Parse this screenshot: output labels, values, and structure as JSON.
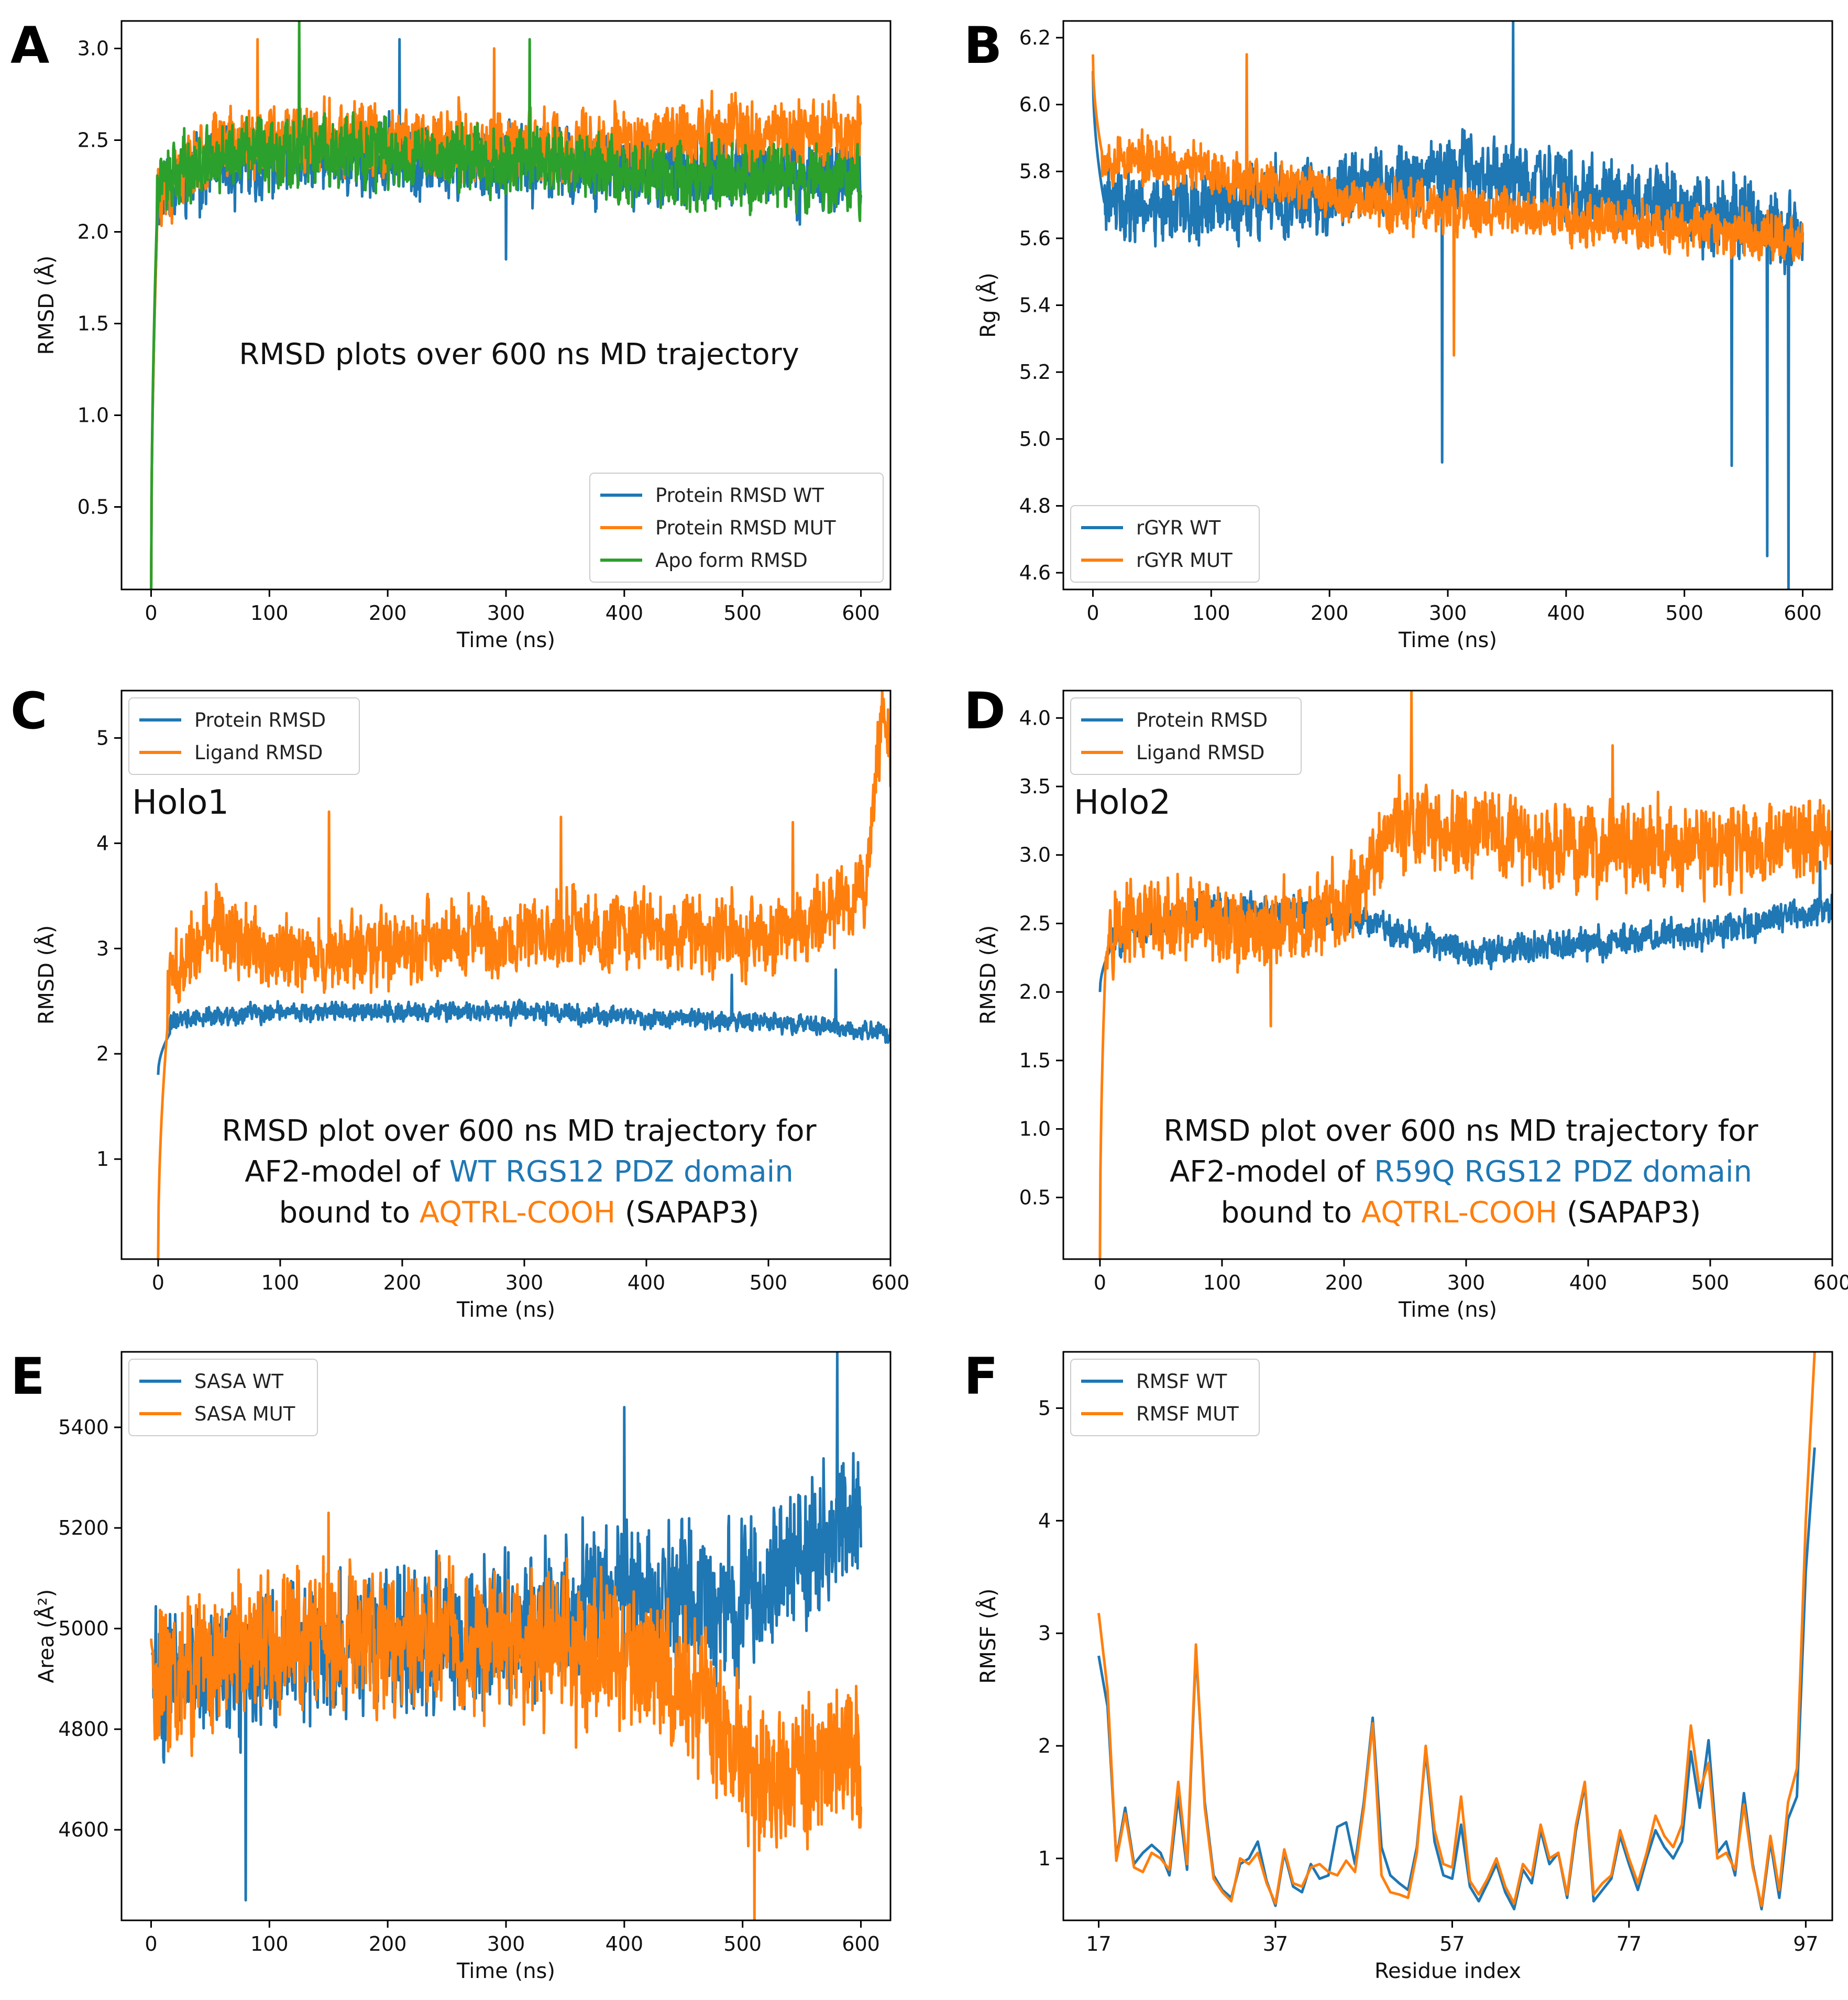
{
  "colors": {
    "wt": "#1f77b4",
    "mut": "#ff7f0e",
    "apo": "#2ca02c"
  },
  "chart_data": [
    {
      "panel": "A",
      "type": "line",
      "xlabel": "Time (ns)",
      "ylabel": "RMSD (Å)",
      "xlim": [
        -25,
        625
      ],
      "ylim": [
        0.05,
        3.15
      ],
      "xticks": [
        0,
        100,
        200,
        300,
        400,
        500,
        600
      ],
      "yticks": [
        0.5,
        1.0,
        1.5,
        2.0,
        2.5,
        3.0
      ],
      "ytick_decimals": 1,
      "legend_position": "bottom-right",
      "annotation": [
        [
          {
            "text": "RMSD plots over 600 ns MD trajectory",
            "color": "text"
          }
        ]
      ],
      "series": [
        {
          "name": "Protein RMSD WT",
          "color": "wt",
          "seed": 11,
          "start": 0.0,
          "rise_to": 2.0,
          "rise_end": 5,
          "segments": [
            [
              0,
              2.2
            ],
            [
              50,
              2.35
            ],
            [
              200,
              2.4
            ],
            [
              400,
              2.35
            ],
            [
              600,
              2.3
            ]
          ],
          "noise": 0.32,
          "spikes": [
            [
              210,
              3.05
            ],
            [
              300,
              1.85
            ]
          ]
        },
        {
          "name": "Protein RMSD MUT",
          "color": "mut",
          "seed": 23,
          "start": 0.0,
          "rise_to": 2.0,
          "rise_end": 5,
          "segments": [
            [
              0,
              2.2
            ],
            [
              60,
              2.5
            ],
            [
              200,
              2.5
            ],
            [
              350,
              2.45
            ],
            [
              480,
              2.55
            ],
            [
              600,
              2.55
            ]
          ],
          "noise": 0.3,
          "spikes": [
            [
              90,
              3.05
            ],
            [
              290,
              3.0
            ]
          ]
        },
        {
          "name": "Apo form RMSD",
          "color": "apo",
          "seed": 37,
          "start": 0.0,
          "rise_to": 2.1,
          "rise_end": 5,
          "segments": [
            [
              0,
              2.3
            ],
            [
              100,
              2.45
            ],
            [
              300,
              2.4
            ],
            [
              450,
              2.3
            ],
            [
              600,
              2.3
            ]
          ],
          "noise": 0.3,
          "spikes": [
            [
              125,
              3.15
            ],
            [
              320,
              3.05
            ]
          ]
        }
      ]
    },
    {
      "panel": "B",
      "type": "line",
      "xlabel": "Time (ns)",
      "ylabel": "Rg (Å)",
      "xlim": [
        -25,
        625
      ],
      "ylim": [
        4.55,
        6.25
      ],
      "xticks": [
        0,
        100,
        200,
        300,
        400,
        500,
        600
      ],
      "yticks": [
        4.6,
        4.8,
        5.0,
        5.2,
        5.4,
        5.6,
        5.8,
        6.0,
        6.2
      ],
      "ytick_decimals": 1,
      "legend_position": "bottom-left",
      "annotation": [],
      "series": [
        {
          "name": "rGYR WT",
          "color": "wt",
          "seed": 41,
          "start": 6.1,
          "rise_to": 5.7,
          "rise_end": 10,
          "segments": [
            [
              0,
              5.7
            ],
            [
              150,
              5.7
            ],
            [
              300,
              5.8
            ],
            [
              400,
              5.75
            ],
            [
              550,
              5.65
            ],
            [
              600,
              5.6
            ]
          ],
          "noise": 0.18,
          "spikes": [
            [
              295,
              4.93
            ],
            [
              355,
              6.25
            ],
            [
              540,
              4.92
            ],
            [
              570,
              4.65
            ],
            [
              588,
              4.55
            ]
          ]
        },
        {
          "name": "rGYR MUT",
          "color": "mut",
          "seed": 53,
          "start": 6.15,
          "rise_to": 5.85,
          "rise_end": 8,
          "segments": [
            [
              0,
              5.85
            ],
            [
              100,
              5.8
            ],
            [
              250,
              5.7
            ],
            [
              450,
              5.65
            ],
            [
              600,
              5.6
            ]
          ],
          "noise": 0.12,
          "spikes": [
            [
              130,
              6.15
            ],
            [
              305,
              5.25
            ]
          ]
        }
      ]
    },
    {
      "panel": "C",
      "type": "line",
      "xlabel": "Time (ns)",
      "ylabel": "RMSD (Å)",
      "xlim": [
        -30,
        600
      ],
      "ylim": [
        0.05,
        5.45
      ],
      "xticks": [
        0,
        100,
        200,
        300,
        400,
        500,
        600
      ],
      "yticks": [
        1,
        2,
        3,
        4,
        5
      ],
      "ytick_decimals": 0,
      "legend_position": "top-left",
      "holo_label": "Holo1",
      "annotation": [
        [
          {
            "text": "RMSD plot over 600 ns MD trajectory for",
            "color": "text"
          }
        ],
        [
          {
            "text": "AF2-model of ",
            "color": "text"
          },
          {
            "text": "WT RGS12 PDZ domain",
            "color": "wt"
          }
        ],
        [
          {
            "text": "bound to ",
            "color": "text"
          },
          {
            "text": "AQTRL-COOH",
            "color": "mut"
          },
          {
            "text": " (SAPAP3)",
            "color": "text"
          }
        ]
      ],
      "series": [
        {
          "name": "Protein RMSD",
          "color": "wt",
          "seed": 61,
          "start": 1.8,
          "rise_to": 2.2,
          "rise_end": 10,
          "segments": [
            [
              0,
              2.3
            ],
            [
              100,
              2.4
            ],
            [
              300,
              2.4
            ],
            [
              500,
              2.3
            ],
            [
              600,
              2.2
            ]
          ],
          "noise": 0.15,
          "spikes": [
            [
              470,
              2.75
            ],
            [
              555,
              2.8
            ]
          ]
        },
        {
          "name": "Ligand RMSD",
          "color": "mut",
          "seed": 73,
          "start": 0.05,
          "rise_to": 2.3,
          "rise_end": 8,
          "segments": [
            [
              0,
              2.5
            ],
            [
              40,
              3.2
            ],
            [
              100,
              2.9
            ],
            [
              250,
              3.1
            ],
            [
              400,
              3.2
            ],
            [
              500,
              3.1
            ],
            [
              580,
              3.5
            ],
            [
              590,
              5.0
            ],
            [
              600,
              4.9
            ]
          ],
          "noise": 0.6,
          "spikes": [
            [
              140,
              4.3
            ],
            [
              330,
              4.25
            ],
            [
              520,
              4.2
            ],
            [
              593,
              5.45
            ]
          ]
        }
      ]
    },
    {
      "panel": "D",
      "type": "line",
      "xlabel": "Time (ns)",
      "ylabel": "RMSD (Å)",
      "xlim": [
        -30,
        600
      ],
      "ylim": [
        0.05,
        4.2
      ],
      "xticks": [
        0,
        100,
        200,
        300,
        400,
        500,
        600
      ],
      "yticks": [
        0.5,
        1.0,
        1.5,
        2.0,
        2.5,
        3.0,
        3.5,
        4.0
      ],
      "ytick_decimals": 1,
      "legend_position": "top-left",
      "holo_label": "Holo2",
      "annotation": [
        [
          {
            "text": "RMSD plot over 600 ns MD trajectory for",
            "color": "text"
          }
        ],
        [
          {
            "text": "AF2-model of ",
            "color": "text"
          },
          {
            "text": "R59Q RGS12 PDZ domain",
            "color": "wt"
          }
        ],
        [
          {
            "text": "bound to ",
            "color": "text"
          },
          {
            "text": "AQTRL-COOH",
            "color": "mut"
          },
          {
            "text": " (SAPAP3)",
            "color": "text"
          }
        ]
      ],
      "series": [
        {
          "name": "Protein RMSD",
          "color": "wt",
          "seed": 83,
          "start": 2.0,
          "rise_to": 2.3,
          "rise_end": 8,
          "segments": [
            [
              0,
              2.35
            ],
            [
              80,
              2.6
            ],
            [
              200,
              2.55
            ],
            [
              300,
              2.3
            ],
            [
              400,
              2.35
            ],
            [
              500,
              2.45
            ],
            [
              600,
              2.6
            ]
          ],
          "noise": 0.18,
          "spikes": [
            [
              590,
              2.95
            ]
          ]
        },
        {
          "name": "Ligand RMSD",
          "color": "mut",
          "seed": 97,
          "start": 0.05,
          "rise_to": 2.3,
          "rise_end": 5,
          "segments": [
            [
              0,
              2.5
            ],
            [
              150,
              2.45
            ],
            [
              200,
              2.6
            ],
            [
              240,
              3.2
            ],
            [
              400,
              3.05
            ],
            [
              600,
              3.1
            ]
          ],
          "noise": 0.5,
          "spikes": [
            [
              255,
              4.2
            ],
            [
              420,
              3.8
            ],
            [
              140,
              1.75
            ]
          ]
        }
      ]
    },
    {
      "panel": "E",
      "type": "line",
      "xlabel": "Time (ns)",
      "ylabel": "Area (Å²)",
      "xlim": [
        -25,
        625
      ],
      "ylim": [
        4420,
        5550
      ],
      "xticks": [
        0,
        100,
        200,
        300,
        400,
        500,
        600
      ],
      "yticks": [
        4600,
        4800,
        5000,
        5200,
        5400
      ],
      "ytick_decimals": 0,
      "legend_position": "top-left",
      "annotation": [],
      "series": [
        {
          "name": "SASA WT",
          "color": "wt",
          "seed": 101,
          "start": 4950,
          "rise_to": 4950,
          "rise_end": 2,
          "segments": [
            [
              0,
              4900
            ],
            [
              100,
              4950
            ],
            [
              300,
              5000
            ],
            [
              400,
              5080
            ],
            [
              500,
              5050
            ],
            [
              550,
              5150
            ],
            [
              600,
              5250
            ]
          ],
          "noise": 230,
          "spikes": [
            [
              80,
              4460
            ],
            [
              580,
              5550
            ],
            [
              400,
              5440
            ]
          ]
        },
        {
          "name": "SASA MUT",
          "color": "mut",
          "seed": 113,
          "start": 4980,
          "rise_to": 4950,
          "rise_end": 2,
          "segments": [
            [
              0,
              4900
            ],
            [
              100,
              4980
            ],
            [
              300,
              4980
            ],
            [
              420,
              4950
            ],
            [
              480,
              4800
            ],
            [
              520,
              4700
            ],
            [
              600,
              4750
            ]
          ],
          "noise": 230,
          "spikes": [
            [
              510,
              4420
            ],
            [
              150,
              5230
            ]
          ]
        }
      ]
    },
    {
      "panel": "F",
      "type": "line",
      "xlabel": "Residue index",
      "ylabel": "RMSF (Å)",
      "xlim": [
        13,
        100
      ],
      "ylim": [
        0.45,
        5.5
      ],
      "xticks": [
        17,
        37,
        57,
        77,
        97
      ],
      "yticks": [
        1,
        2,
        3,
        4,
        5
      ],
      "ytick_decimals": 0,
      "legend_position": "top-left",
      "annotation": [],
      "x": [
        17,
        18,
        19,
        20,
        21,
        22,
        23,
        24,
        25,
        26,
        27,
        28,
        29,
        30,
        31,
        32,
        33,
        34,
        35,
        36,
        37,
        38,
        39,
        40,
        41,
        42,
        43,
        44,
        45,
        46,
        47,
        48,
        49,
        50,
        51,
        52,
        53,
        54,
        55,
        56,
        57,
        58,
        59,
        60,
        61,
        62,
        63,
        64,
        65,
        66,
        67,
        68,
        69,
        70,
        71,
        72,
        73,
        74,
        75,
        76,
        77,
        78,
        79,
        80,
        81,
        82,
        83,
        84,
        85,
        86,
        87,
        88,
        89,
        90,
        91,
        92,
        93,
        94,
        95,
        96,
        97,
        98
      ],
      "series": [
        {
          "name": "RMSF WT",
          "color": "wt",
          "values": [
            2.8,
            2.35,
            1.0,
            1.45,
            0.95,
            1.05,
            1.12,
            1.05,
            0.85,
            1.55,
            0.9,
            2.85,
            1.5,
            0.85,
            0.72,
            0.65,
            0.95,
            1.0,
            1.15,
            0.8,
            0.58,
            1.05,
            0.75,
            0.7,
            0.95,
            0.82,
            0.85,
            1.28,
            1.32,
            0.95,
            1.5,
            2.25,
            1.1,
            0.85,
            0.78,
            0.72,
            1.1,
            1.95,
            1.15,
            0.85,
            0.82,
            1.3,
            0.75,
            0.62,
            0.78,
            0.95,
            0.7,
            0.55,
            0.9,
            0.78,
            1.25,
            0.95,
            1.05,
            0.65,
            1.25,
            1.65,
            0.62,
            0.72,
            0.82,
            1.2,
            0.95,
            0.72,
            1.0,
            1.25,
            1.1,
            1.0,
            1.15,
            1.95,
            1.45,
            2.05,
            1.05,
            1.15,
            0.85,
            1.58,
            0.95,
            0.55,
            1.15,
            0.65,
            1.35,
            1.55,
            3.55,
            4.65
          ]
        },
        {
          "name": "RMSF MUT",
          "color": "mut",
          "values": [
            3.18,
            2.5,
            0.98,
            1.4,
            0.92,
            0.88,
            1.05,
            1.0,
            0.9,
            1.68,
            0.95,
            2.9,
            1.45,
            0.82,
            0.7,
            0.62,
            1.0,
            0.95,
            1.05,
            0.78,
            0.6,
            1.08,
            0.78,
            0.75,
            0.92,
            0.95,
            0.88,
            0.85,
            0.98,
            0.88,
            1.45,
            2.2,
            0.85,
            0.7,
            0.68,
            0.65,
            1.05,
            2.0,
            1.25,
            0.95,
            0.92,
            1.55,
            0.8,
            0.68,
            0.82,
            1.0,
            0.75,
            0.6,
            0.95,
            0.85,
            1.3,
            1.0,
            1.05,
            0.68,
            1.3,
            1.68,
            0.68,
            0.78,
            0.85,
            1.25,
            1.0,
            0.78,
            1.05,
            1.38,
            1.2,
            1.1,
            1.3,
            2.18,
            1.6,
            1.85,
            1.0,
            1.05,
            0.9,
            1.48,
            0.92,
            0.58,
            1.2,
            0.72,
            1.5,
            1.8,
            4.0,
            5.5
          ]
        }
      ]
    }
  ]
}
